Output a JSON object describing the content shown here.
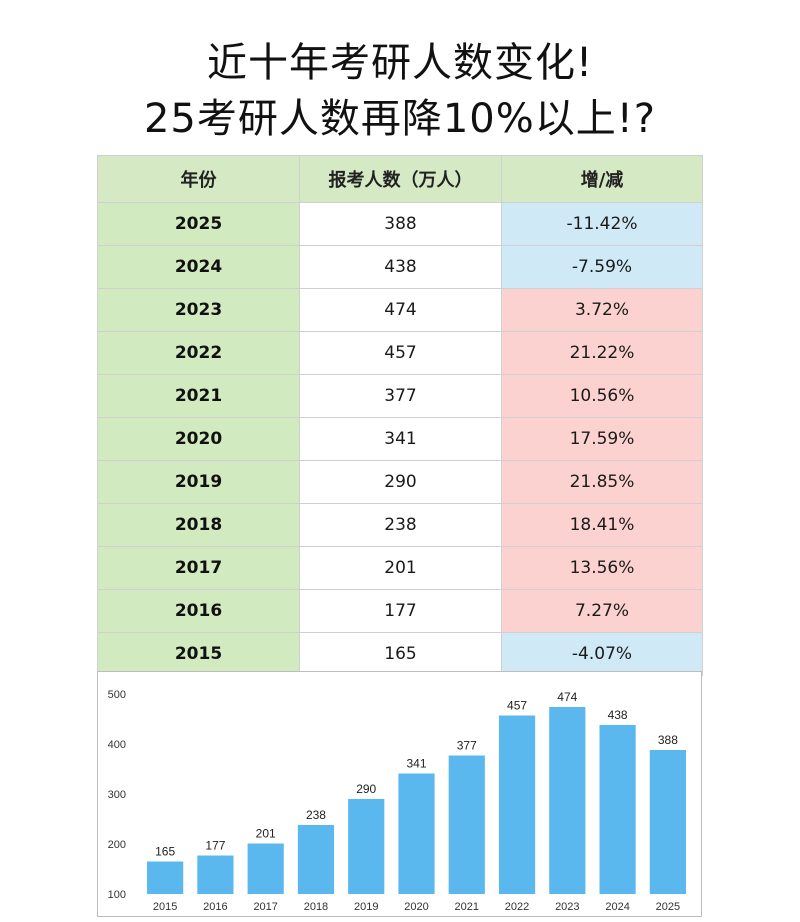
{
  "title": {
    "line1": "近十年考研人数变化!",
    "line2": "25考研人数再降10%以上!?"
  },
  "table": {
    "headers": [
      "年份",
      "报考人数（万人）",
      "增/减"
    ],
    "rows": [
      {
        "year": "2025",
        "count": "388",
        "change": "-11.42%",
        "sign": "neg"
      },
      {
        "year": "2024",
        "count": "438",
        "change": "-7.59%",
        "sign": "neg"
      },
      {
        "year": "2023",
        "count": "474",
        "change": "3.72%",
        "sign": "pos"
      },
      {
        "year": "2022",
        "count": "457",
        "change": "21.22%",
        "sign": "pos"
      },
      {
        "year": "2021",
        "count": "377",
        "change": "10.56%",
        "sign": "pos"
      },
      {
        "year": "2020",
        "count": "341",
        "change": "17.59%",
        "sign": "pos"
      },
      {
        "year": "2019",
        "count": "290",
        "change": "21.85%",
        "sign": "pos"
      },
      {
        "year": "2018",
        "count": "238",
        "change": "18.41%",
        "sign": "pos"
      },
      {
        "year": "2017",
        "count": "201",
        "change": "13.56%",
        "sign": "pos"
      },
      {
        "year": "2016",
        "count": "177",
        "change": "7.27%",
        "sign": "pos"
      },
      {
        "year": "2015",
        "count": "165",
        "change": "-4.07%",
        "sign": "neg"
      }
    ],
    "colors": {
      "header_bg": "#d4e9c4",
      "year_bg": "#d2eac0",
      "increase_bg": "#fbd2cf",
      "decrease_bg": "#cfe9f6"
    }
  },
  "chart_data": {
    "type": "bar",
    "categories": [
      "2015",
      "2016",
      "2017",
      "2018",
      "2019",
      "2020",
      "2021",
      "2022",
      "2023",
      "2024",
      "2025"
    ],
    "values": [
      165,
      177,
      201,
      238,
      290,
      341,
      377,
      457,
      474,
      438,
      388
    ],
    "yticks": [
      100,
      200,
      300,
      400,
      500
    ],
    "ylim": [
      100,
      500
    ],
    "bar_color": "#5ab8ee",
    "grid": false,
    "legend": "none"
  }
}
